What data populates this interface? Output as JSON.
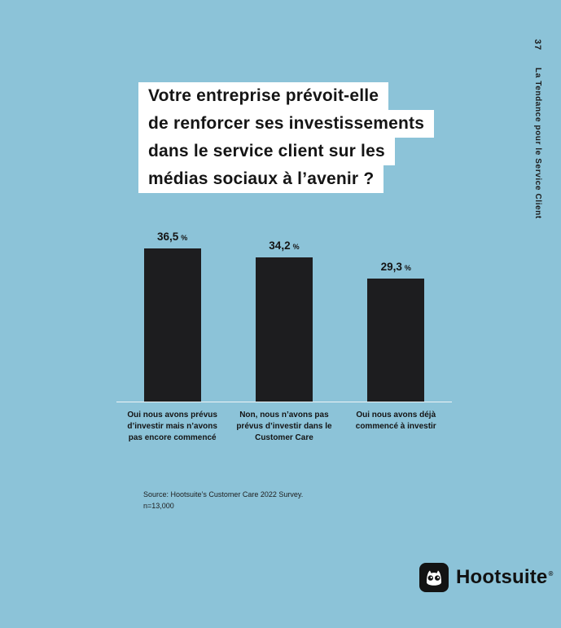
{
  "page": {
    "number": "37",
    "sidebar_title": "La Tendance pour le Service Client"
  },
  "title": {
    "lines": [
      "Votre entreprise prévoit-elle",
      "de renforcer ses investissements",
      "dans le service client sur les",
      "médias sociaux à l’avenir ?"
    ]
  },
  "chart_data": {
    "type": "bar",
    "title": "Votre entreprise prévoit-elle de renforcer ses investissements dans le service client sur les médias sociaux à l’avenir ?",
    "categories": [
      "Oui nous avons prévus d’investir mais n’avons pas encore commencé",
      "Non, nous n’avons pas prévus d’investir dans le Customer Care",
      "Oui nous avons déjà commencé à investir"
    ],
    "values": [
      36.5,
      34.2,
      29.3
    ],
    "value_labels": [
      "36,5",
      "34,2",
      "29,3"
    ],
    "unit": "%",
    "xlabel": "",
    "ylabel": "",
    "ylim": [
      0,
      40
    ],
    "grid": false,
    "legend": false
  },
  "source": {
    "line1": "Source: Hootsuite’s Customer Care 2022 Survey.",
    "line2": "n=13,000"
  },
  "footer": {
    "brand": "Hootsuite",
    "registered": "®"
  },
  "colors": {
    "background": "#8CC3D8",
    "bar": "#1D1D1F",
    "title_box": "#FFFFFF",
    "text": "#161616",
    "baseline": "#EFF5F7"
  }
}
